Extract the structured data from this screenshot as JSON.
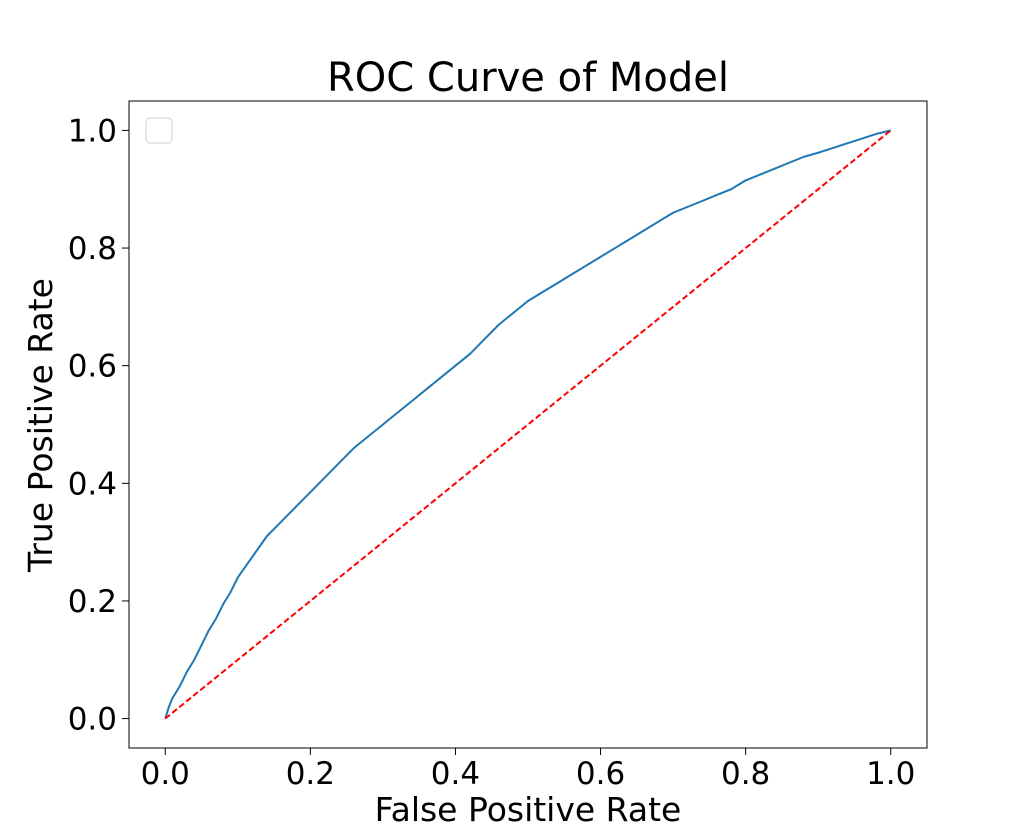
{
  "chart_data": {
    "type": "line",
    "title": "ROC Curve of Model",
    "xlabel": "False Positive Rate",
    "ylabel": "True Positive Rate",
    "xlim": [
      -0.05,
      1.05
    ],
    "ylim": [
      -0.05,
      1.05
    ],
    "xticks": [
      0.0,
      0.2,
      0.4,
      0.6,
      0.8,
      1.0
    ],
    "yticks": [
      0.0,
      0.2,
      0.4,
      0.6,
      0.8,
      1.0
    ],
    "xtick_labels": [
      "0.0",
      "0.2",
      "0.4",
      "0.6",
      "0.8",
      "1.0"
    ],
    "ytick_labels": [
      "0.0",
      "0.2",
      "0.4",
      "0.6",
      "0.8",
      "1.0"
    ],
    "grid": false,
    "legend": {
      "placement": "top-left",
      "entries": []
    },
    "series": [
      {
        "color": "#1f77b4",
        "style": "solid",
        "x": [
          0.0,
          0.005,
          0.01,
          0.02,
          0.03,
          0.04,
          0.05,
          0.06,
          0.07,
          0.08,
          0.09,
          0.1,
          0.12,
          0.14,
          0.16,
          0.18,
          0.2,
          0.22,
          0.24,
          0.26,
          0.28,
          0.3,
          0.32,
          0.34,
          0.36,
          0.38,
          0.4,
          0.42,
          0.44,
          0.46,
          0.48,
          0.5,
          0.52,
          0.54,
          0.56,
          0.58,
          0.6,
          0.62,
          0.64,
          0.66,
          0.68,
          0.7,
          0.72,
          0.74,
          0.76,
          0.78,
          0.8,
          0.82,
          0.84,
          0.86,
          0.88,
          0.9,
          0.92,
          0.94,
          0.96,
          0.98,
          1.0
        ],
        "y": [
          0.0,
          0.02,
          0.035,
          0.055,
          0.08,
          0.1,
          0.125,
          0.15,
          0.17,
          0.195,
          0.215,
          0.24,
          0.275,
          0.31,
          0.335,
          0.36,
          0.385,
          0.41,
          0.435,
          0.46,
          0.48,
          0.5,
          0.52,
          0.54,
          0.56,
          0.58,
          0.6,
          0.62,
          0.645,
          0.67,
          0.69,
          0.71,
          0.725,
          0.74,
          0.755,
          0.77,
          0.785,
          0.8,
          0.815,
          0.83,
          0.845,
          0.86,
          0.87,
          0.88,
          0.89,
          0.9,
          0.915,
          0.925,
          0.935,
          0.945,
          0.955,
          0.962,
          0.97,
          0.978,
          0.986,
          0.994,
          1.0
        ]
      },
      {
        "color": "#ff0000",
        "style": "dashed",
        "x": [
          0.0,
          1.0
        ],
        "y": [
          0.0,
          1.0
        ]
      }
    ]
  }
}
